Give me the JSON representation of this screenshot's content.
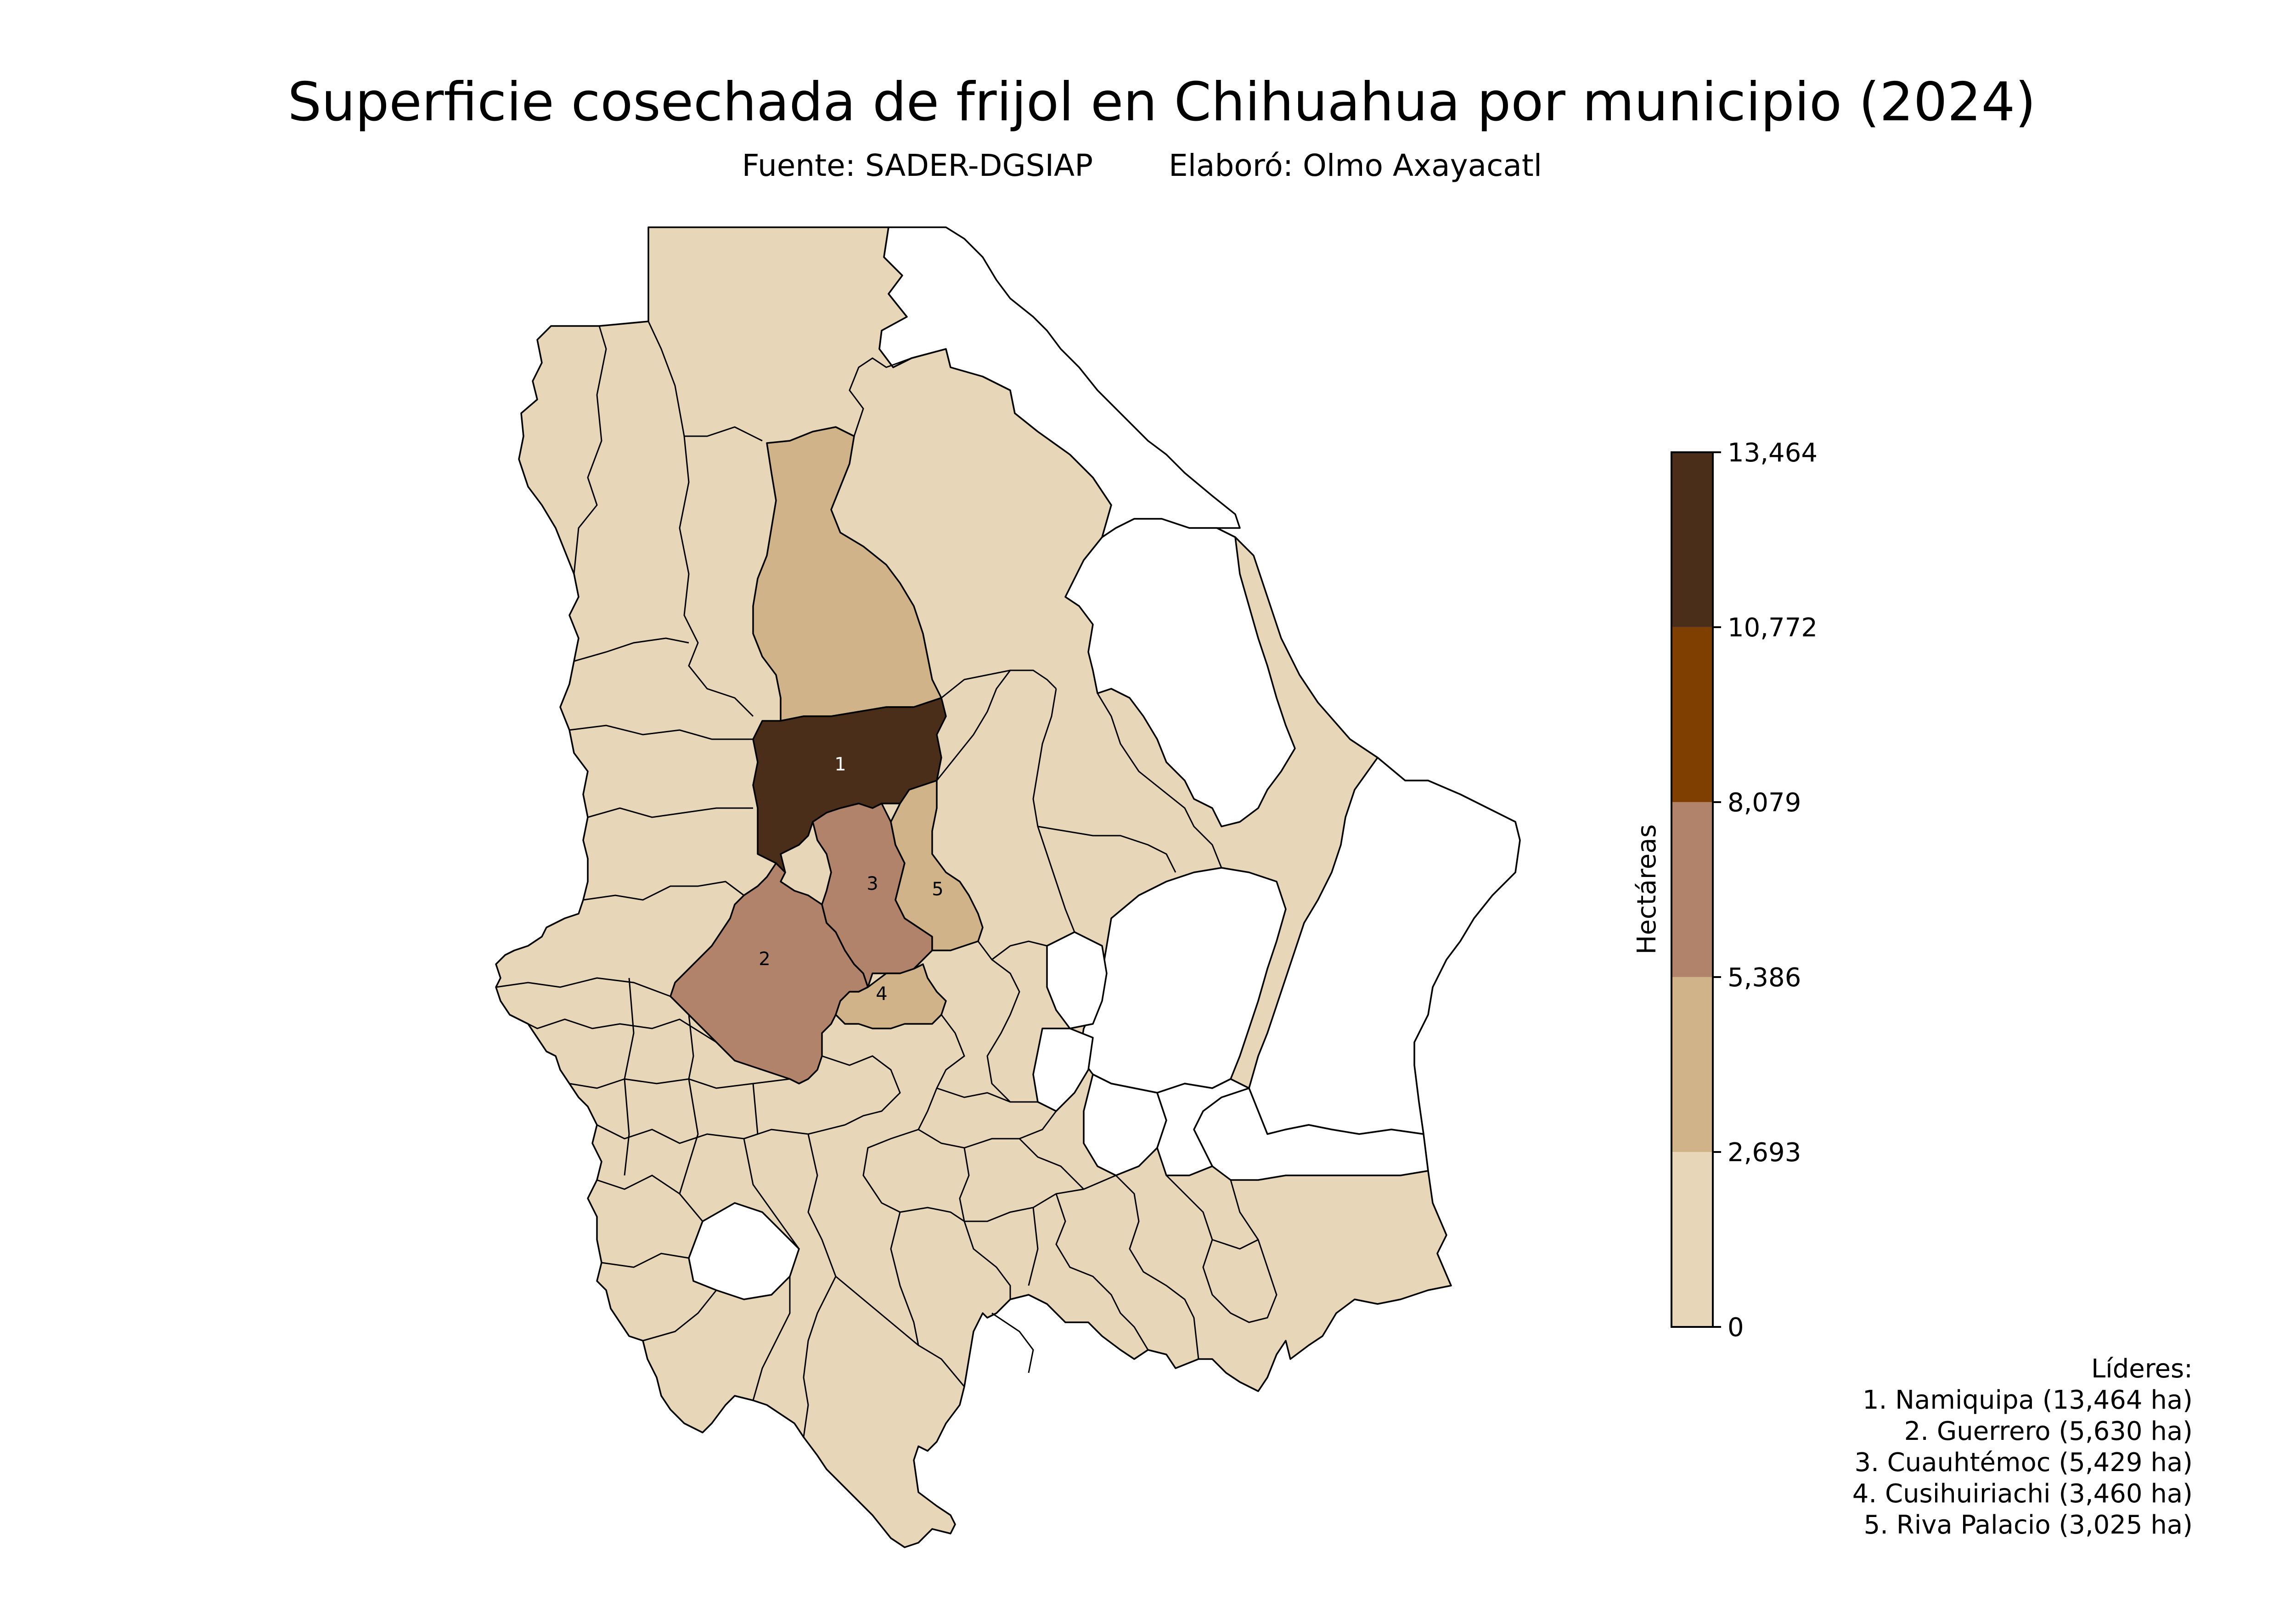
{
  "title": "Superficie cosechada de frijol en Chihuahua por municipio (2024)",
  "subtitle": {
    "source": "Fuente: SADER-DGSIAP",
    "author": "Elaboró: Olmo Axayacatl"
  },
  "colorbar": {
    "label": "Hectáreas",
    "min": 0,
    "max": 13464,
    "ticks": [
      "0",
      "2,693",
      "5,386",
      "8,079",
      "10,772",
      "13,464"
    ],
    "bins": [
      {
        "from": 0,
        "to": 2693,
        "color": "#e8d6b8"
      },
      {
        "from": 2693,
        "to": 5386,
        "color": "#d1b38a"
      },
      {
        "from": 5386,
        "to": 8079,
        "color": "#b0836a"
      },
      {
        "from": 8079,
        "to": 10772,
        "color": "#7e3f00"
      },
      {
        "from": 10772,
        "to": 13464,
        "color": "#4b2e19"
      }
    ]
  },
  "no_data_color": "#ffffff",
  "leaders": {
    "heading": "Líderes:",
    "items": [
      "1. Namiquipa (13,464 ha)",
      "2. Guerrero (5,630 ha)",
      "3. Cuauhtémoc (5,429 ha)",
      "4. Cusihuiriachi (3,460 ha)",
      "5. Riva Palacio (3,025 ha)"
    ]
  },
  "map_labels": {
    "namiquipa": "1",
    "guerrero": "2",
    "cuauhtemoc": "3",
    "cusihuiriachi": "4",
    "riva_palacio": "5"
  },
  "chart_data": {
    "type": "choropleth",
    "title": "Superficie cosechada de frijol en Chihuahua por municipio (2024)",
    "value_label": "Hectáreas",
    "legend_placement": "right",
    "scale_range": [
      0,
      13464
    ],
    "top_municipalities": [
      {
        "rank": 1,
        "name": "Namiquipa",
        "value": 13464
      },
      {
        "rank": 2,
        "name": "Guerrero",
        "value": 5630
      },
      {
        "rank": 3,
        "name": "Cuauhtémoc",
        "value": 5429
      },
      {
        "rank": 4,
        "name": "Cusihuiriachi",
        "value": 3460
      },
      {
        "rank": 5,
        "name": "Riva Palacio",
        "value": 3025
      }
    ]
  }
}
